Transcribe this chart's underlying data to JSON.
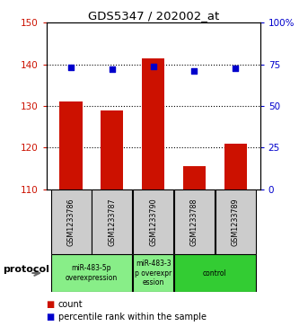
{
  "title": "GDS5347 / 202002_at",
  "samples": [
    "GSM1233786",
    "GSM1233787",
    "GSM1233790",
    "GSM1233788",
    "GSM1233789"
  ],
  "counts": [
    131.0,
    129.0,
    141.5,
    115.5,
    121.0
  ],
  "percentiles": [
    73.0,
    72.0,
    73.5,
    71.0,
    72.5
  ],
  "ylim_left": [
    110,
    150
  ],
  "ylim_right": [
    0,
    100
  ],
  "yticks_left": [
    110,
    120,
    130,
    140,
    150
  ],
  "yticks_right": [
    0,
    25,
    50,
    75,
    100
  ],
  "yticklabels_right": [
    "0",
    "25",
    "50",
    "75",
    "100%"
  ],
  "bar_color": "#cc1100",
  "dot_color": "#0000cc",
  "left_axis_color": "#cc1100",
  "right_axis_color": "#0000cc",
  "protocol_groups": [
    {
      "indices": [
        0,
        1
      ],
      "label": "miR-483-5p\noverexpression",
      "color": "#88ee88"
    },
    {
      "indices": [
        2
      ],
      "label": "miR-483-3\np overexpr\nession",
      "color": "#88ee88"
    },
    {
      "indices": [
        3,
        4
      ],
      "label": "control",
      "color": "#33cc33"
    }
  ],
  "legend_count_label": "count",
  "legend_percentile_label": "percentile rank within the sample",
  "protocol_label": "protocol"
}
